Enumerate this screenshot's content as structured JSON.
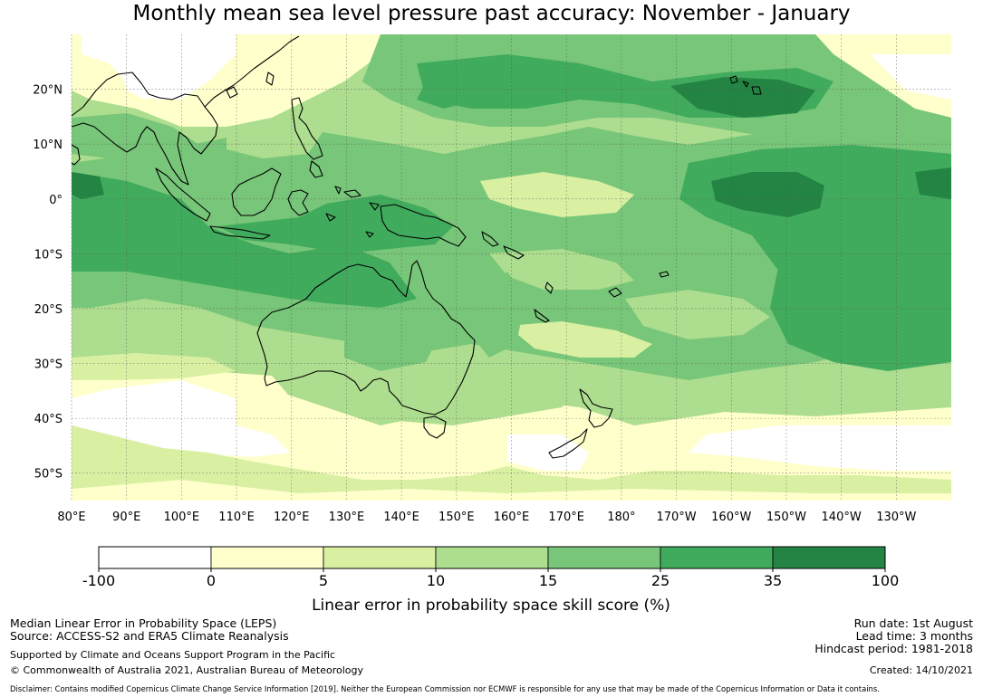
{
  "title": "Monthly mean sea level pressure past accuracy: November - January",
  "map": {
    "lat_ticks": [
      "20°N",
      "10°N",
      "0°",
      "10°S",
      "20°S",
      "30°S",
      "40°S",
      "50°S"
    ],
    "lon_ticks": [
      "80°E",
      "90°E",
      "100°E",
      "110°E",
      "120°E",
      "130°E",
      "140°E",
      "150°E",
      "160°E",
      "170°E",
      "180°",
      "170°W",
      "160°W",
      "150°W",
      "140°W",
      "130°W"
    ],
    "lat_values": [
      20,
      10,
      0,
      -10,
      -20,
      -30,
      -40,
      -50
    ],
    "lon_values": [
      80,
      90,
      100,
      110,
      120,
      130,
      140,
      150,
      160,
      170,
      180,
      190,
      200,
      210,
      220,
      230
    ],
    "extent": {
      "lon_min": 80,
      "lon_max": 240,
      "lat_min": -55,
      "lat_max": 30
    }
  },
  "colorbar": {
    "ticks": [
      "-100",
      "0",
      "5",
      "10",
      "15",
      "25",
      "35",
      "100"
    ],
    "colors": [
      "#ffffff",
      "#ffffcc",
      "#d9f0a3",
      "#addd8e",
      "#78c679",
      "#41ab5d",
      "#238443"
    ],
    "label": "Linear error in probability space skill score (%)"
  },
  "footer": {
    "method": "Median Linear Error in Probability Space (LEPS)",
    "source": "Source: ACCESS-S2 and ERA5 Climate Reanalysis",
    "support": "Supported by Climate and Oceans Support Program in the Pacific",
    "copyright": "© Commonwealth of Australia 2021, Australian Bureau of Meteorology",
    "run_date": "Run date: 1st August",
    "lead_time": "Lead time: 3 months",
    "hindcast": "Hindcast period: 1981-2018",
    "created": "Created: 14/10/2021",
    "disclaimer": "Disclaimer: Contains modified Copernicus Climate Change Service Information [2019]. Neither the European Commission nor ECMWF is responsible for any use that may be made of the Copernicus Information or Data it contains."
  }
}
